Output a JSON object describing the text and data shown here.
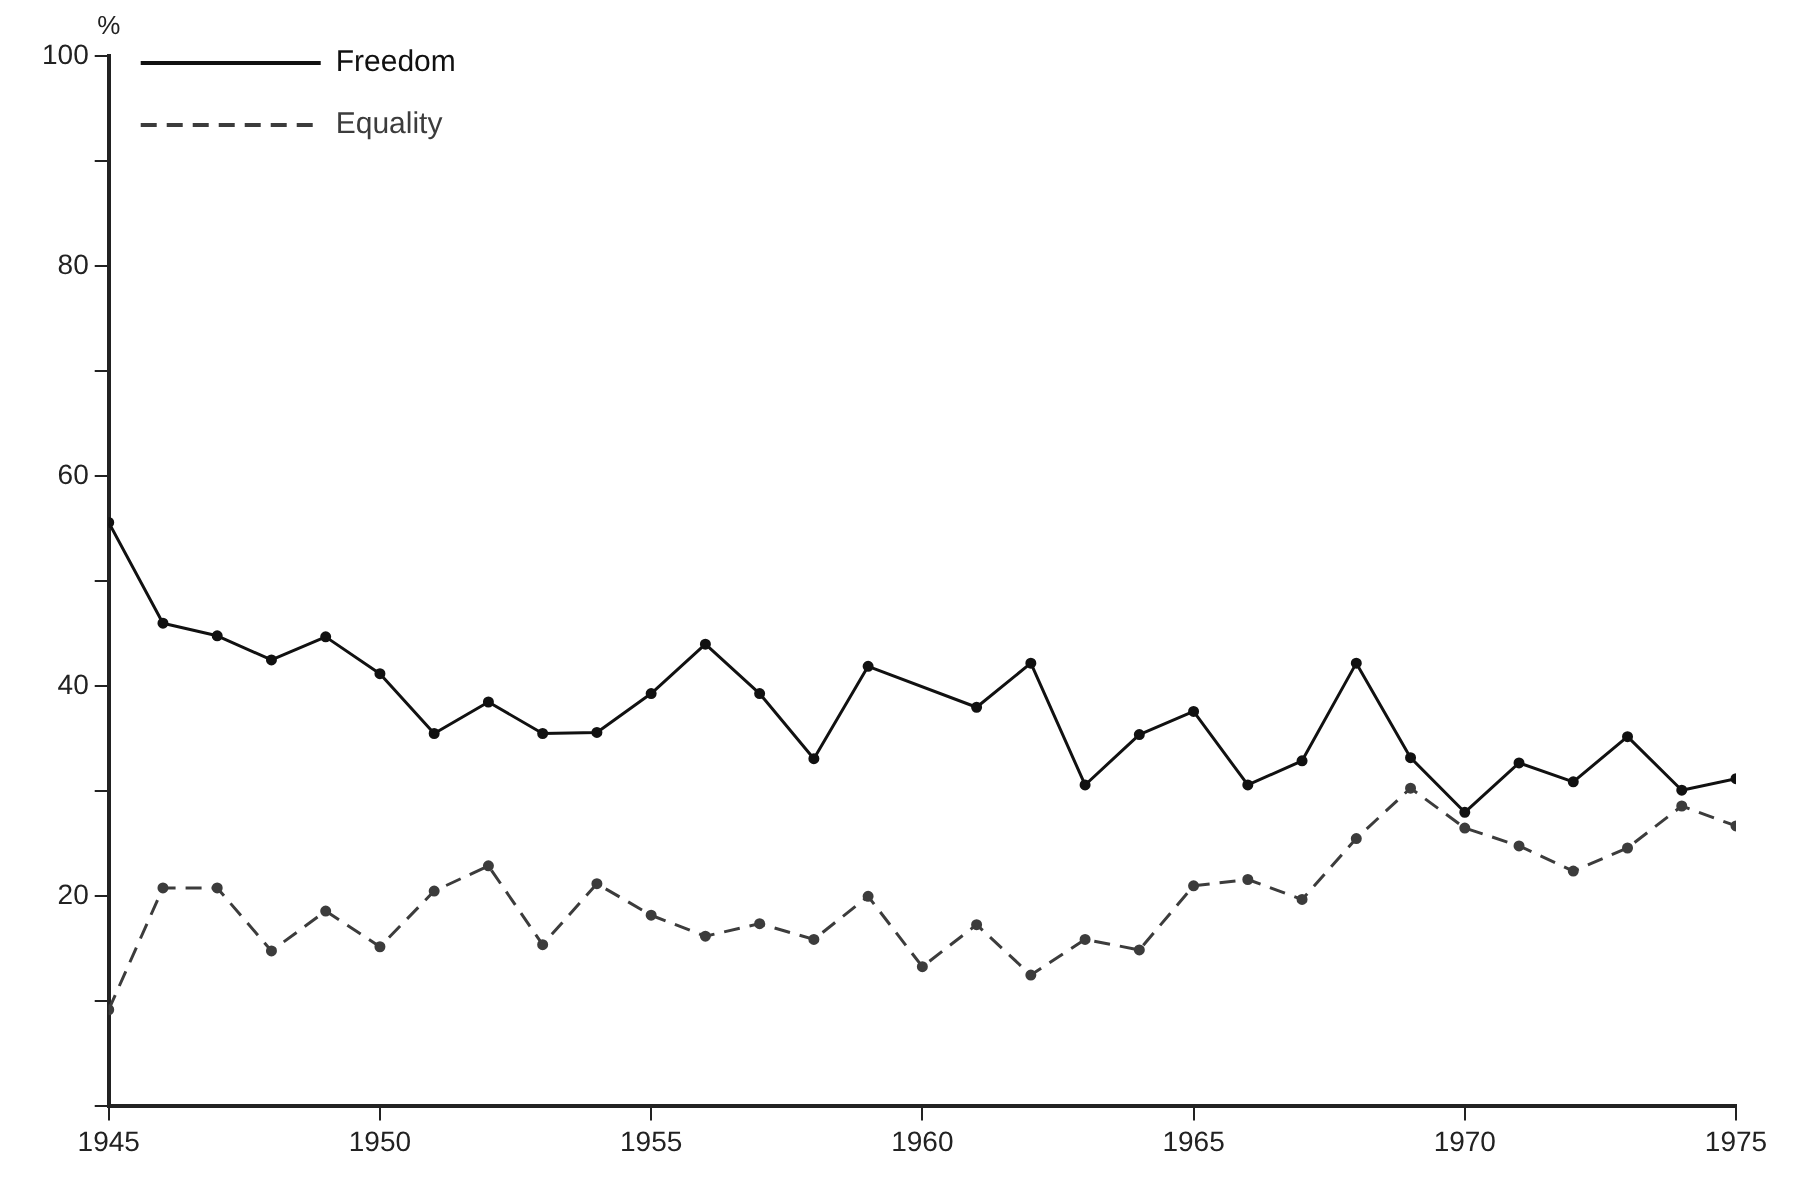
{
  "chart_data": {
    "type": "line",
    "ylabel": "%",
    "xlim": [
      1945,
      1975
    ],
    "xticks": [
      1945,
      1950,
      1955,
      1960,
      1965,
      1970,
      1975
    ],
    "ylim": [
      0,
      100
    ],
    "yticks": [
      {
        "value": 0,
        "label": null
      },
      {
        "value": 10,
        "label": null
      },
      20,
      {
        "value": 30,
        "label": null
      },
      40,
      {
        "value": 50,
        "label": null
      },
      60,
      {
        "value": 70,
        "label": null
      },
      80,
      {
        "value": 90,
        "label": null
      },
      100
    ],
    "grid": false,
    "legend": "top left",
    "marker": "circle",
    "series": [
      {
        "name": "Freedom",
        "color": "#111111",
        "line_style": "solid",
        "x": [
          1945,
          1946,
          1947,
          1948,
          1949,
          1950,
          1951,
          1952,
          1953,
          1954,
          1955,
          1956,
          1957,
          1958,
          1959,
          1961,
          1962,
          1963,
          1964,
          1965,
          1966,
          1967,
          1968,
          1969,
          1970,
          1971,
          1972,
          1973,
          1974,
          1975
        ],
        "values": [
          55.6,
          46.0,
          44.8,
          42.5,
          44.7,
          41.2,
          35.5,
          38.5,
          35.5,
          35.6,
          39.3,
          44.0,
          39.3,
          33.1,
          41.9,
          38.0,
          42.2,
          30.6,
          35.4,
          37.6,
          30.6,
          32.9,
          42.2,
          33.2,
          28.0,
          32.7,
          30.9,
          35.2,
          30.1,
          31.2
        ]
      },
      {
        "name": "Equality",
        "color": "#3c3c3c",
        "line_style": "dashed",
        "x": [
          1945,
          1946,
          1947,
          1948,
          1949,
          1950,
          1951,
          1952,
          1953,
          1954,
          1955,
          1956,
          1957,
          1958,
          1959,
          1960,
          1961,
          1962,
          1963,
          1964,
          1965,
          1966,
          1967,
          1968,
          1969,
          1970,
          1971,
          1972,
          1973,
          1974,
          1975
        ],
        "values": [
          9.2,
          20.8,
          20.8,
          14.8,
          18.6,
          15.2,
          20.5,
          22.9,
          15.4,
          21.2,
          18.2,
          16.2,
          17.4,
          15.9,
          20.0,
          13.3,
          17.3,
          12.5,
          15.9,
          14.9,
          21.0,
          21.6,
          19.7,
          25.5,
          30.3,
          26.5,
          24.8,
          22.4,
          24.6,
          28.6,
          26.7
        ]
      }
    ]
  }
}
